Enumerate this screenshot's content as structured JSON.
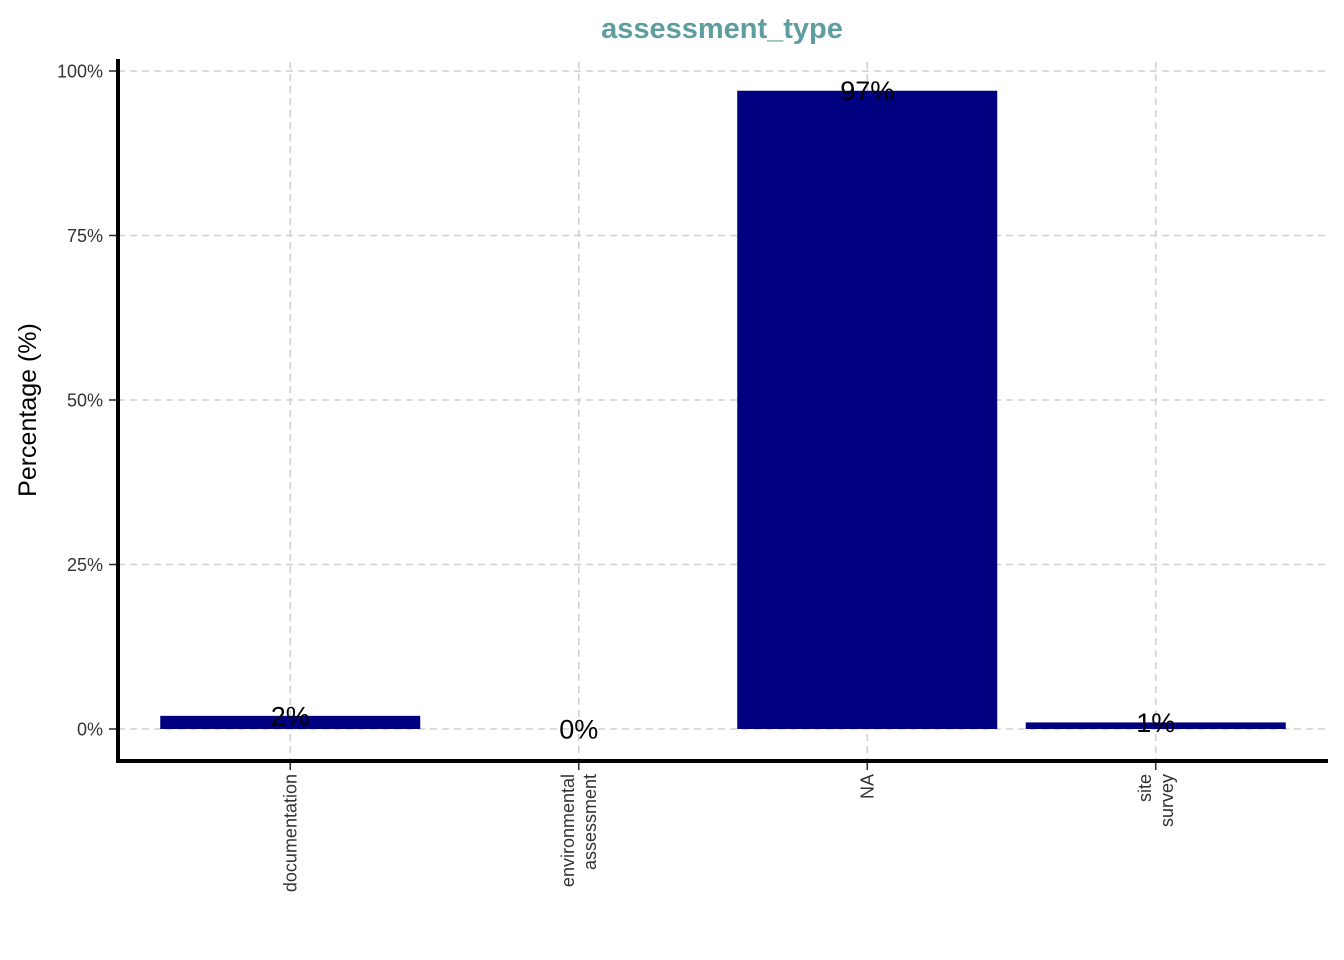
{
  "chart_data": {
    "type": "bar",
    "title": "assessment_type",
    "xlabel": "",
    "ylabel": "Percentage (%)",
    "categories": [
      [
        "documentation"
      ],
      [
        "environmental",
        "assessment"
      ],
      [
        "NA"
      ],
      [
        "site",
        "survey"
      ]
    ],
    "values": [
      2,
      0,
      97,
      1
    ],
    "data_labels": [
      "2%",
      "0%",
      "97%",
      "1%"
    ],
    "yticks": [
      0,
      25,
      50,
      75,
      100
    ],
    "ytick_labels": [
      "0%",
      "25%",
      "50%",
      "75%",
      "100%"
    ],
    "ylim": [
      0,
      100
    ],
    "grid": true,
    "colors": {
      "bar": "#000080",
      "title": "#5F9EA0",
      "grid": "#d0d0d0",
      "axis": "#000000"
    }
  }
}
